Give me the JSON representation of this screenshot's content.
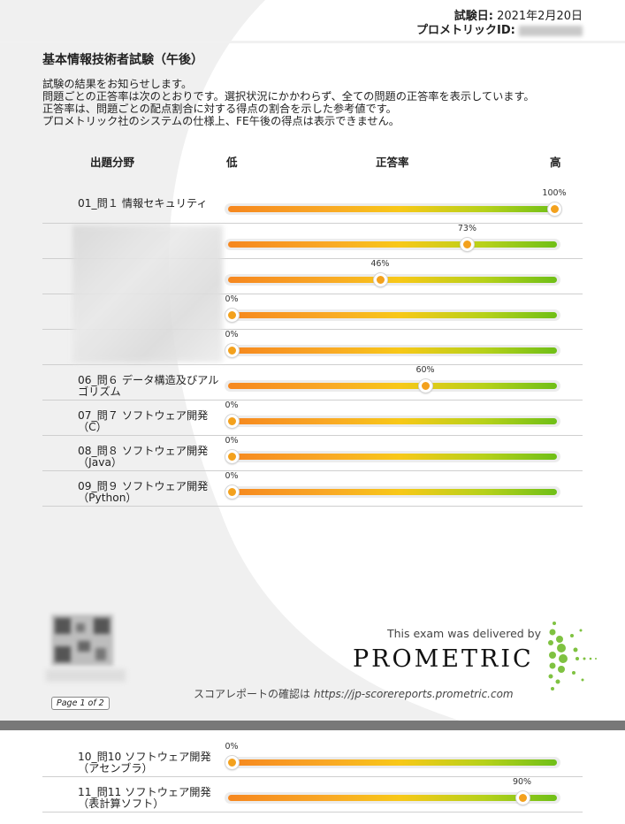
{
  "header": {
    "date_label": "試験日:",
    "date_value": "2021年2月20日",
    "id_label": "プロメトリックID:"
  },
  "title": "基本情報技術者試験（午後）",
  "intro": [
    "試験の結果をお知らせします。",
    "問題ごとの正答率は次のとおりです。選択状況にかかわらず、全ての問題の正答率を表示しています。",
    "正答率は、問題ごとの配点割合に対する得点の割合を示した参考値です。",
    "プロメトリック社のシステムの仕様上、FE午後の得点は表示できません。"
  ],
  "columns": {
    "area": "出題分野",
    "low": "低",
    "rate": "正答率",
    "high": "高"
  },
  "rows": [
    {
      "label": "01_問１ 情報セキュリティ",
      "value": 100,
      "pct": "100%"
    },
    {
      "label": "",
      "value": 73,
      "pct": "73%"
    },
    {
      "label": "",
      "value": 46,
      "pct": "46%"
    },
    {
      "label": "",
      "value": 0,
      "pct": "0%"
    },
    {
      "label": "",
      "value": 0,
      "pct": "0%"
    },
    {
      "label": "06_問６ データ構造及びアルゴリズム",
      "value": 60,
      "pct": "60%"
    },
    {
      "label": "07_問７ ソフトウェア開発（C）",
      "value": 0,
      "pct": "0%"
    },
    {
      "label": "08_問８ ソフトウェア開発（Java）",
      "value": 0,
      "pct": "0%"
    },
    {
      "label": "09_問９ ソフトウェア開発（Python）",
      "value": 0,
      "pct": "0%"
    }
  ],
  "rows_page2": [
    {
      "label": "10_問10 ソフトウェア開発（アセンブラ）",
      "value": 0,
      "pct": "0%"
    },
    {
      "label": "11_問11 ソフトウェア開発（表計算ソフト）",
      "value": 90,
      "pct": "90%"
    }
  ],
  "footer": {
    "page": "Page 1 of 2",
    "delivered_by": "This exam was delivered by",
    "brand": "PROMETRIC",
    "confirm_text": "スコアレポートの確認は",
    "confirm_url": "https://jp-scorereports.prometric.com"
  },
  "colors": {
    "bar_start": "#f6871f",
    "bar_mid": "#f8c818",
    "bar_end": "#6fbf17",
    "knob": "#f3a11d",
    "logo_green": "#7fc241",
    "separator": "#787878"
  }
}
